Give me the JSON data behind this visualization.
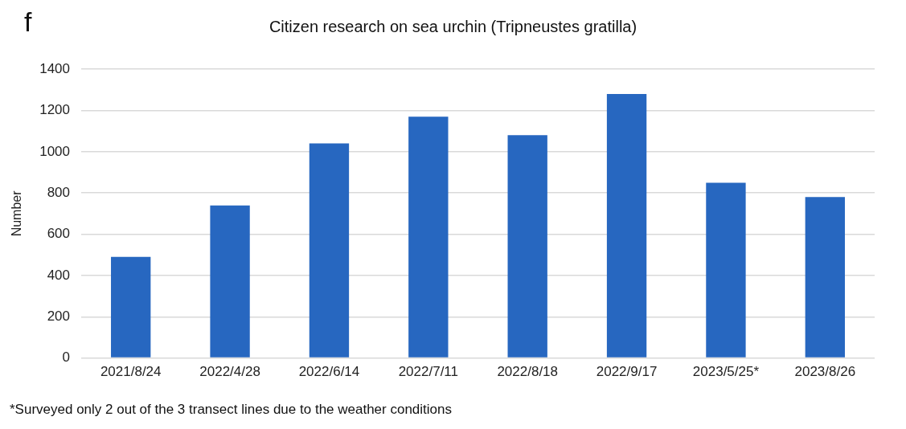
{
  "chart_data": {
    "type": "bar",
    "title": "Citizen research on sea urchin (Tripneustes gratilla)",
    "ylabel": "Number",
    "categories": [
      "2021/8/24",
      "2022/4/28",
      "2022/6/14",
      "2022/7/11",
      "2022/8/18",
      "2022/9/17",
      "2023/5/25*",
      "2023/8/26"
    ],
    "values": [
      490,
      740,
      1040,
      1170,
      1080,
      1280,
      850,
      780
    ],
    "color": "#2767c0",
    "ylim": [
      0,
      1400
    ],
    "yticks": [
      0,
      200,
      400,
      600,
      800,
      1000,
      1200,
      1400
    ],
    "grid": "y",
    "legend": false,
    "annotations": [
      "f",
      "*Surveyed only 2 out of the 3 transect lines due to the weather conditions"
    ]
  }
}
